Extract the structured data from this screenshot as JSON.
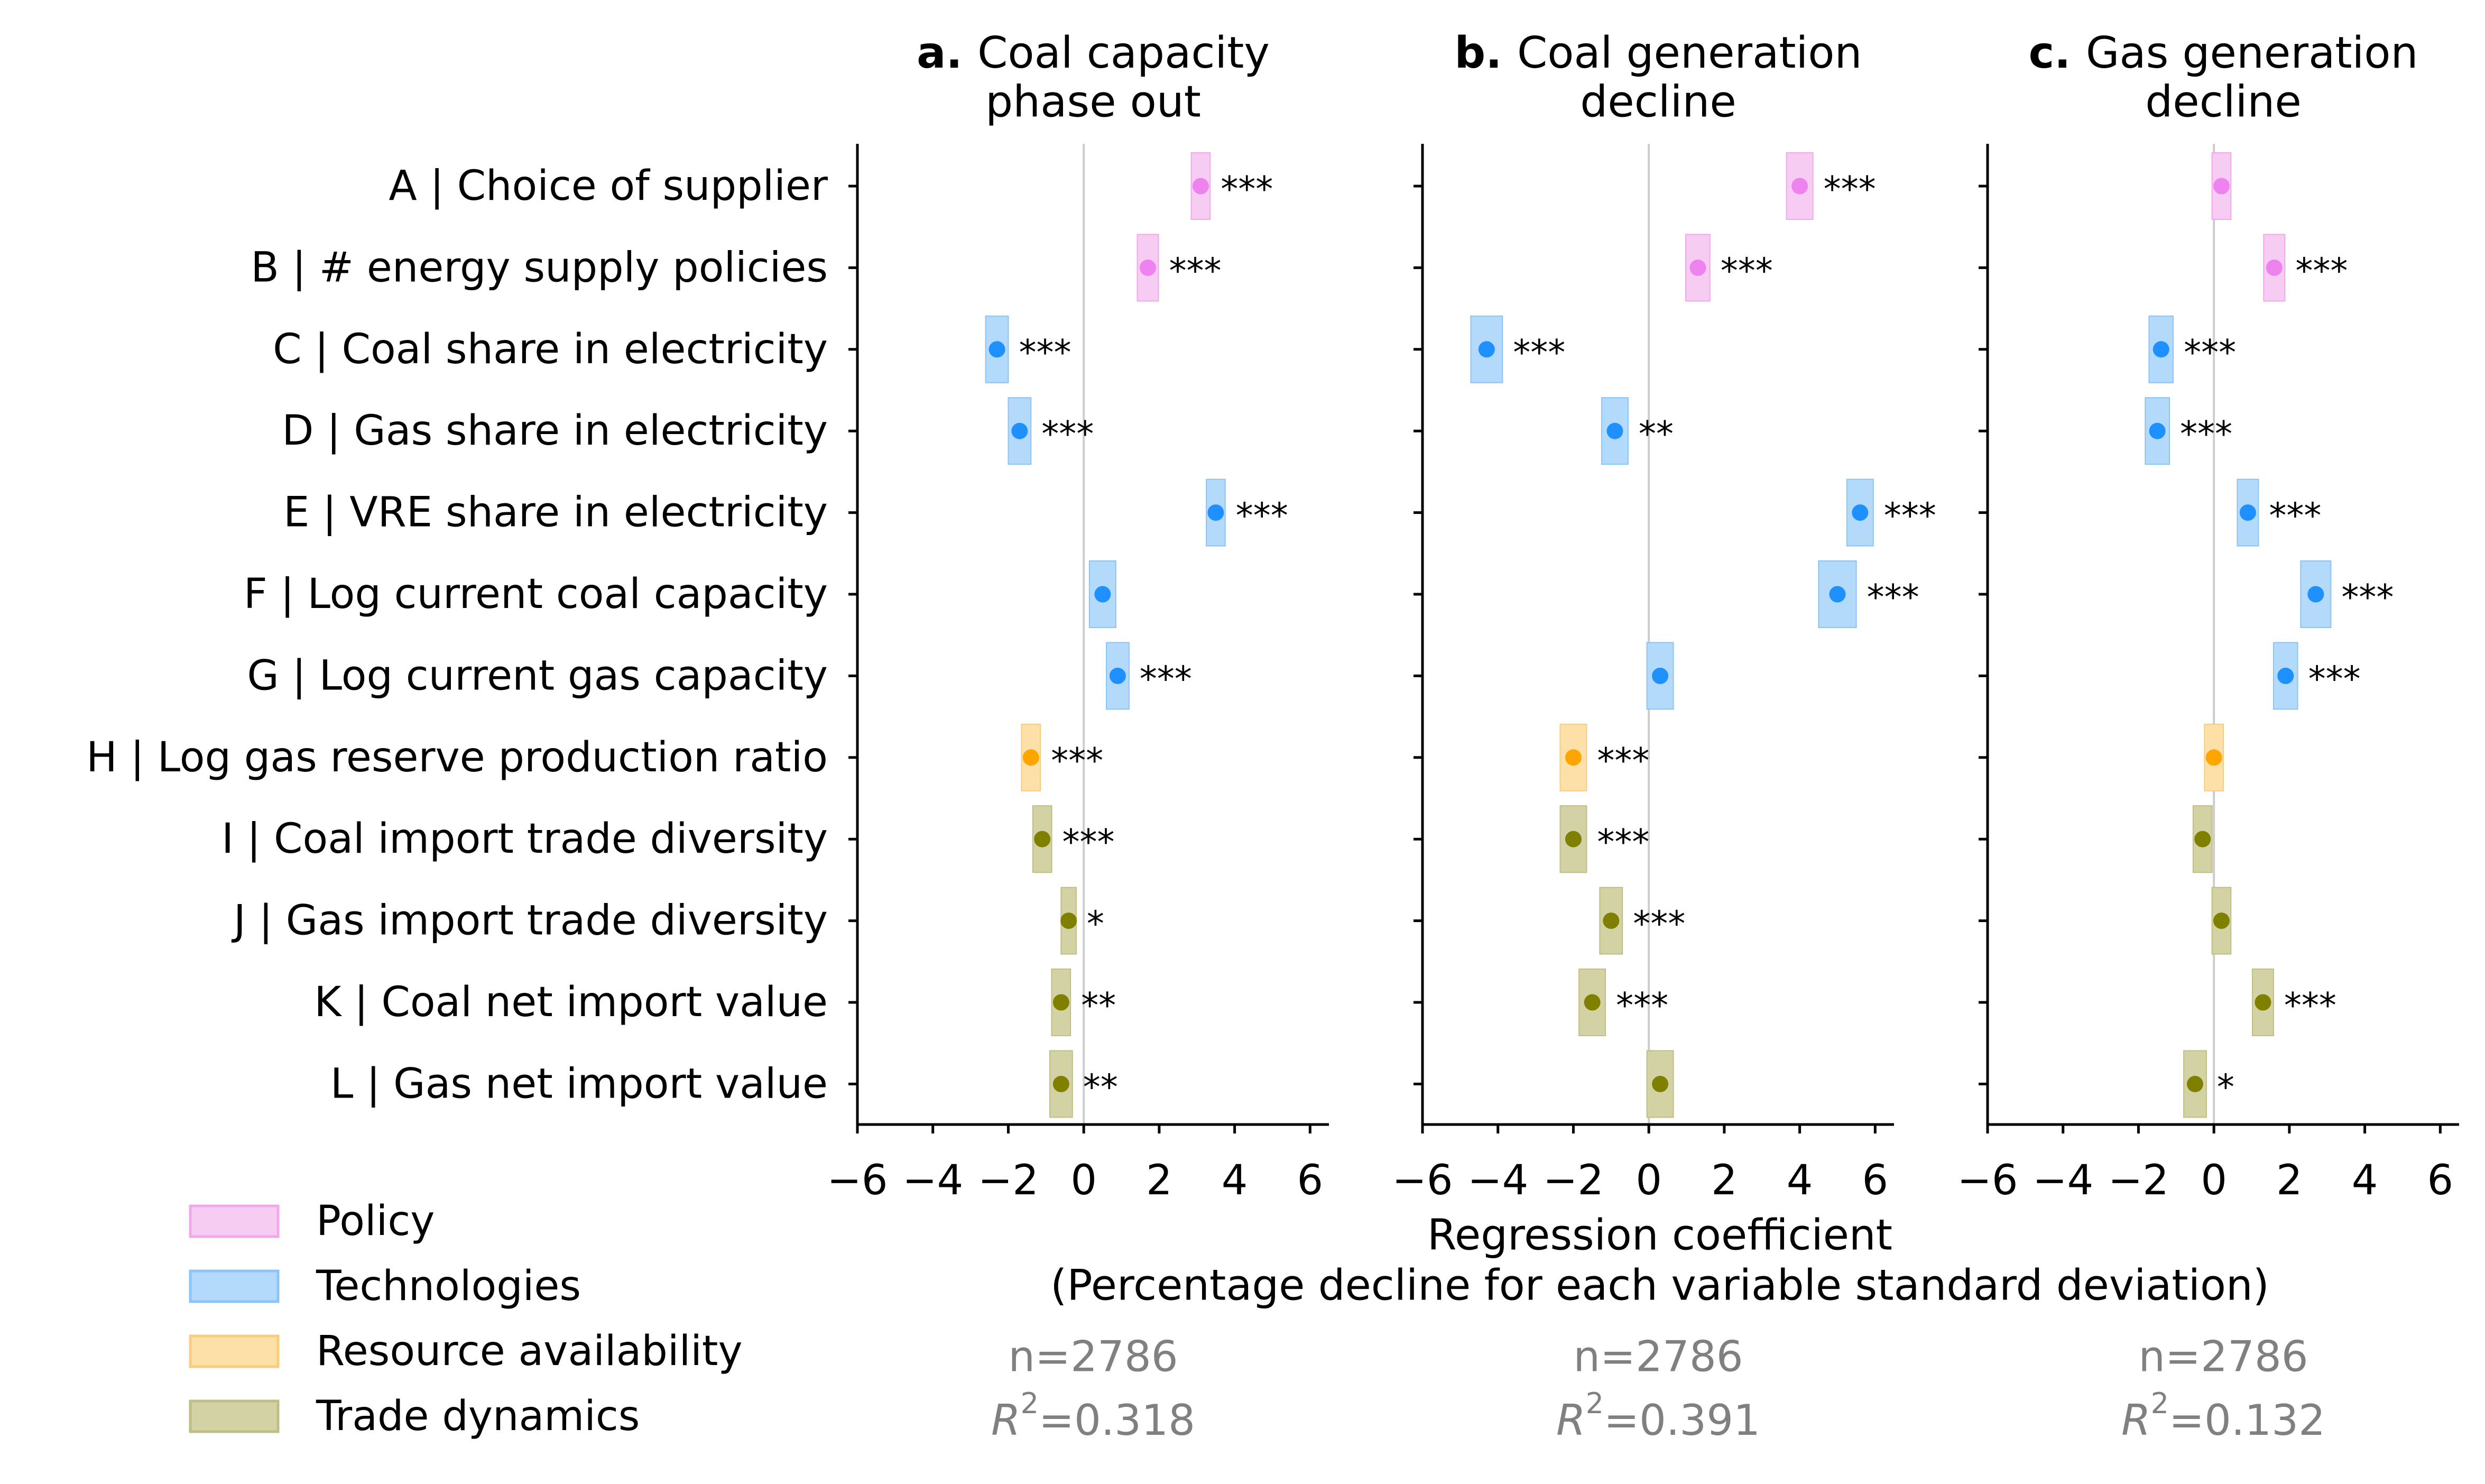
{
  "chart_data": {
    "type": "dot-interval",
    "variables": [
      "A | Choice of supplier",
      "B | # energy supply policies",
      "C | Coal share in electricity",
      "D | Gas share in electricity",
      "E | VRE share in electricity",
      "F | Log current coal capacity",
      "G | Log current gas capacity",
      "H | Log gas reserve production ratio",
      "I | Coal import trade diversity",
      "J | Gas import trade diversity",
      "K | Coal net import value",
      "L | Gas net import value"
    ],
    "categories_of_variables": [
      "policy",
      "policy",
      "tech",
      "tech",
      "tech",
      "tech",
      "tech",
      "resource",
      "trade",
      "trade",
      "trade",
      "trade"
    ],
    "xlim": [
      -6,
      6.5
    ],
    "xticks": [
      -6,
      -4,
      -2,
      0,
      2,
      4,
      6
    ],
    "xtick_labels": [
      "−6",
      "−4",
      "−2",
      "0",
      "2",
      "4",
      "6"
    ],
    "xlabel_line1": "Regression coefficient",
    "xlabel_line2": "(Percentage decline for each variable standard deviation)",
    "panels": [
      {
        "letter": "a.",
        "title_line1": "Coal capacity",
        "title_line2": "phase out",
        "n_text": "n=2786",
        "r2_value": "=0.318",
        "coef": [
          3.1,
          1.7,
          -2.3,
          -1.7,
          3.5,
          0.5,
          0.9,
          -1.4,
          -1.1,
          -0.4,
          -0.6,
          -0.6
        ],
        "lo": [
          2.85,
          1.42,
          -2.6,
          -2.0,
          3.25,
          0.15,
          0.6,
          -1.65,
          -1.35,
          -0.6,
          -0.85,
          -0.9
        ],
        "hi": [
          3.35,
          1.98,
          -2.0,
          -1.4,
          3.75,
          0.85,
          1.2,
          -1.15,
          -0.85,
          -0.2,
          -0.35,
          -0.3
        ],
        "sig": [
          "***",
          "***",
          "***",
          "***",
          "***",
          "",
          "***",
          "***",
          "***",
          "*",
          "**",
          "**"
        ]
      },
      {
        "letter": "b.",
        "title_line1": "Coal generation",
        "title_line2": "decline",
        "n_text": "n=2786",
        "r2_value": "=0.391",
        "coef": [
          4.0,
          1.3,
          -4.3,
          -0.9,
          5.6,
          5.0,
          0.3,
          -2.0,
          -2.0,
          -1.0,
          -1.5,
          0.3
        ],
        "lo": [
          3.65,
          0.98,
          -4.72,
          -1.25,
          5.25,
          4.5,
          -0.05,
          -2.35,
          -2.35,
          -1.3,
          -1.85,
          -0.05
        ],
        "hi": [
          4.35,
          1.62,
          -3.88,
          -0.55,
          5.95,
          5.5,
          0.65,
          -1.65,
          -1.65,
          -0.7,
          -1.15,
          0.65
        ],
        "sig": [
          "***",
          "***",
          "***",
          "**",
          "***",
          "***",
          "",
          "***",
          "***",
          "***",
          "***",
          ""
        ]
      },
      {
        "letter": "c.",
        "title_line1": "Gas generation",
        "title_line2": "decline",
        "n_text": "n=2786",
        "r2_value": "=0.132",
        "coef": [
          0.2,
          1.6,
          -1.4,
          -1.5,
          0.9,
          2.7,
          1.9,
          0.0,
          -0.3,
          0.2,
          1.3,
          -0.5
        ],
        "lo": [
          -0.05,
          1.32,
          -1.72,
          -1.82,
          0.62,
          2.3,
          1.58,
          -0.25,
          -0.55,
          -0.05,
          1.02,
          -0.8
        ],
        "hi": [
          0.45,
          1.88,
          -1.08,
          -1.18,
          1.18,
          3.1,
          2.22,
          0.25,
          -0.05,
          0.45,
          1.58,
          -0.2
        ],
        "sig": [
          "",
          "***",
          "***",
          "***",
          "***",
          "***",
          "***",
          "",
          "",
          "",
          "***",
          "*"
        ]
      }
    ],
    "legend": [
      {
        "key": "policy",
        "label": "Policy"
      },
      {
        "key": "tech",
        "label": "Technologies"
      },
      {
        "key": "resource",
        "label": "Resource availability"
      },
      {
        "key": "trade",
        "label": "Trade dynamics"
      }
    ],
    "legend_placement": "bottom-left",
    "colors": {
      "policy": {
        "box": "#f7ccf2",
        "edge": "#f0a8ea",
        "dot": "#ee82ee"
      },
      "tech": {
        "box": "#b3d9fb",
        "edge": "#8cc4f5",
        "dot": "#1e90ff"
      },
      "resource": {
        "box": "#fde0a8",
        "edge": "#f8cd7d",
        "dot": "#ffa500"
      },
      "trade": {
        "box": "#d3d2a4",
        "edge": "#bfbe84",
        "dot": "#808000"
      },
      "axis": "#000000",
      "zero_line": "#cccccc",
      "stats_text": "#808080"
    },
    "grid": false
  }
}
